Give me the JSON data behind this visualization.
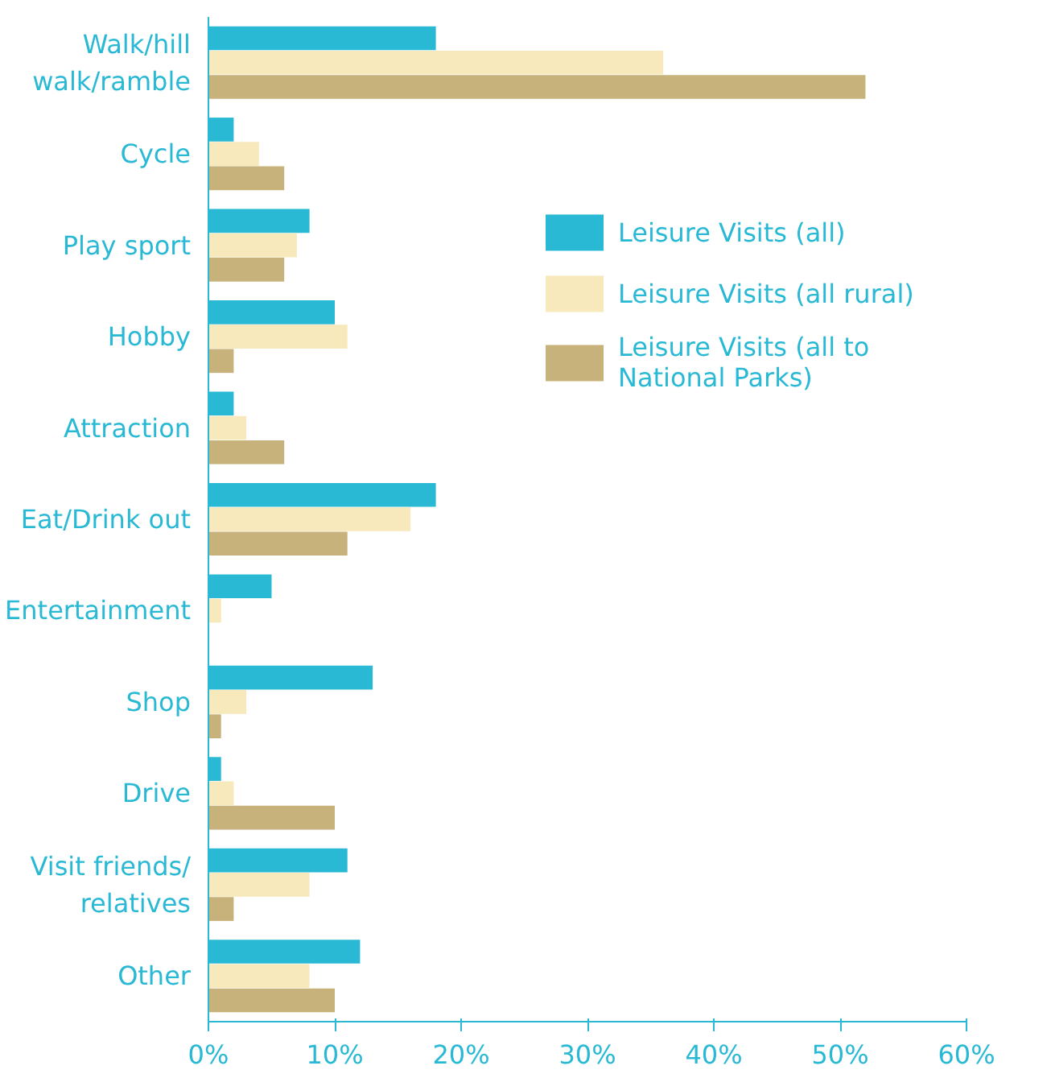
{
  "chart_data": {
    "type": "bar",
    "orientation": "horizontal",
    "categories": [
      "Walk/hill\nwalk/ramble",
      "Cycle",
      "Play sport",
      "Hobby",
      "Attraction",
      "Eat/Drink out",
      "Entertainment",
      "Shop",
      "Drive",
      "Visit friends/\nrelatives",
      "Other"
    ],
    "series": [
      {
        "name": "Leisure Visits (all)",
        "color": "#29b9d5",
        "values": [
          18,
          2,
          8,
          10,
          2,
          18,
          5,
          13,
          1,
          11,
          12
        ]
      },
      {
        "name": "Leisure Visits (all rural)",
        "color": "#f7e9bb",
        "values": [
          36,
          4,
          7,
          11,
          3,
          16,
          1,
          3,
          2,
          8,
          8
        ]
      },
      {
        "name": "Leisure Visits (all to\nNational Parks)",
        "color": "#c7b27b",
        "values": [
          52,
          6,
          6,
          2,
          6,
          11,
          0,
          1,
          10,
          2,
          10
        ]
      }
    ],
    "xlim": [
      0,
      60
    ],
    "xticks": [
      {
        "value": 0,
        "label": "0%"
      },
      {
        "value": 10,
        "label": "10%"
      },
      {
        "value": 20,
        "label": "20%"
      },
      {
        "value": 30,
        "label": "30%"
      },
      {
        "value": 40,
        "label": "40%"
      },
      {
        "value": 50,
        "label": "50%"
      },
      {
        "value": 60,
        "label": "60%"
      }
    ],
    "grid": false,
    "legend": "top right"
  }
}
